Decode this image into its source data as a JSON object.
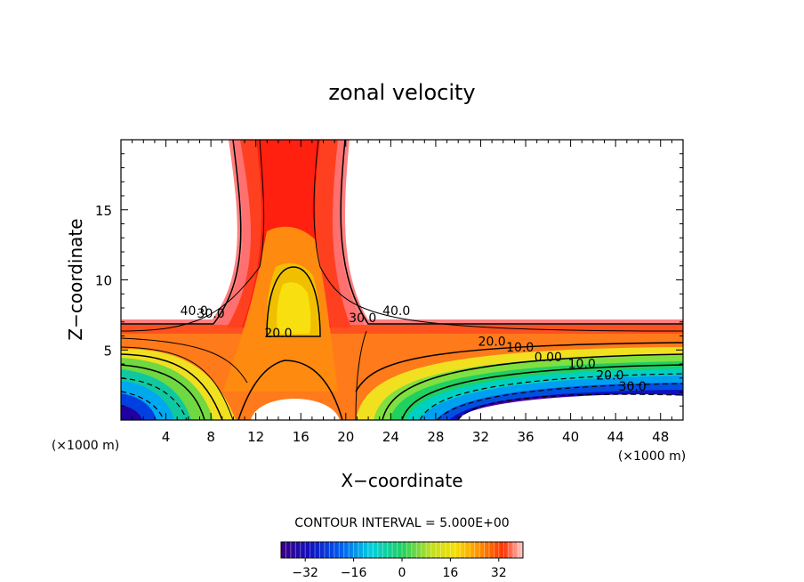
{
  "chart_data": {
    "type": "heatmap",
    "subtype": "filled-contour",
    "title": "zonal velocity",
    "xlabel": "X−coordinate",
    "ylabel": "Z−coordinate",
    "x_unit_left": "(×1000 m)",
    "x_unit_right": "(×1000 m)",
    "xlim": [
      0,
      50
    ],
    "ylim": [
      0,
      20
    ],
    "xticks": [
      4,
      8,
      12,
      16,
      20,
      24,
      28,
      32,
      36,
      40,
      44,
      48
    ],
    "yticks": [
      5,
      10,
      15
    ],
    "contour_interval_label": "CONTOUR INTERVAL = 5.000E+00",
    "contour_levels": [
      -30,
      -25,
      -20,
      -15,
      -10,
      -5,
      0,
      5,
      10,
      15,
      20,
      25,
      30,
      35,
      40
    ],
    "contour_labels": [
      {
        "text": "40.0",
        "x": 6.5,
        "y": 7.5
      },
      {
        "text": "30.0",
        "x": 8.0,
        "y": 7.3
      },
      {
        "text": "20.0",
        "x": 14.0,
        "y": 5.9
      },
      {
        "text": "30.0",
        "x": 21.5,
        "y": 7.0
      },
      {
        "text": "40.0",
        "x": 24.5,
        "y": 7.5
      },
      {
        "text": "20.0",
        "x": 33.0,
        "y": 5.3
      },
      {
        "text": "10.0",
        "x": 35.5,
        "y": 4.9
      },
      {
        "text": "0.00",
        "x": 38.0,
        "y": 4.2
      },
      {
        "text": "10.0",
        "x": 41.0,
        "y": 3.7
      },
      {
        "text": "20.0",
        "x": 43.5,
        "y": 2.9
      },
      {
        "text": "30.0",
        "x": 45.5,
        "y": 2.1
      }
    ],
    "colorbar": {
      "range": [
        -40,
        40
      ],
      "ticks": [
        -32,
        -16,
        0,
        16,
        32
      ]
    },
    "grid": false,
    "legend": "colorbar-bottom"
  }
}
